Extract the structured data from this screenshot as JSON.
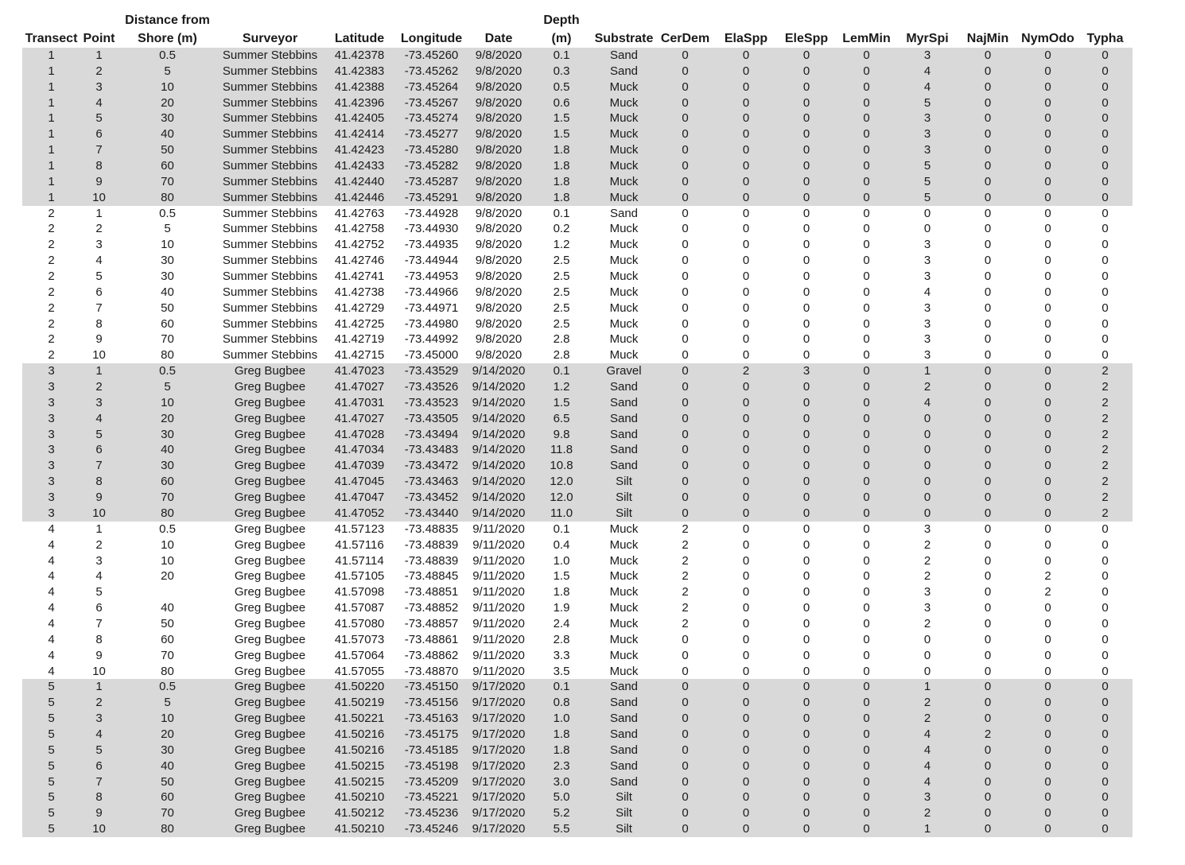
{
  "columns": [
    {
      "line1": "",
      "line2": "Transect"
    },
    {
      "line1": "",
      "line2": "Point"
    },
    {
      "line1": "Distance from",
      "line2": "Shore (m)"
    },
    {
      "line1": "",
      "line2": "Surveyor"
    },
    {
      "line1": "",
      "line2": "Latitude"
    },
    {
      "line1": "",
      "line2": "Longitude"
    },
    {
      "line1": "",
      "line2": "Date"
    },
    {
      "line1": "Depth",
      "line2": "(m)"
    },
    {
      "line1": "",
      "line2": "Substrate"
    },
    {
      "line1": "",
      "line2": "CerDem"
    },
    {
      "line1": "",
      "line2": "ElaSpp"
    },
    {
      "line1": "",
      "line2": "EleSpp"
    },
    {
      "line1": "",
      "line2": "LemMin"
    },
    {
      "line1": "",
      "line2": "MyrSpi"
    },
    {
      "line1": "",
      "line2": "NajMin"
    },
    {
      "line1": "",
      "line2": "NymOdo"
    },
    {
      "line1": "",
      "line2": "Typha"
    }
  ],
  "rows": [
    [
      "1",
      "1",
      "0.5",
      "Summer Stebbins",
      "41.42378",
      "-73.45260",
      "9/8/2020",
      "0.1",
      "Sand",
      "0",
      "0",
      "0",
      "0",
      "3",
      "0",
      "0",
      "0"
    ],
    [
      "1",
      "2",
      "5",
      "Summer Stebbins",
      "41.42383",
      "-73.45262",
      "9/8/2020",
      "0.3",
      "Sand",
      "0",
      "0",
      "0",
      "0",
      "4",
      "0",
      "0",
      "0"
    ],
    [
      "1",
      "3",
      "10",
      "Summer Stebbins",
      "41.42388",
      "-73.45264",
      "9/8/2020",
      "0.5",
      "Muck",
      "0",
      "0",
      "0",
      "0",
      "4",
      "0",
      "0",
      "0"
    ],
    [
      "1",
      "4",
      "20",
      "Summer Stebbins",
      "41.42396",
      "-73.45267",
      "9/8/2020",
      "0.6",
      "Muck",
      "0",
      "0",
      "0",
      "0",
      "5",
      "0",
      "0",
      "0"
    ],
    [
      "1",
      "5",
      "30",
      "Summer Stebbins",
      "41.42405",
      "-73.45274",
      "9/8/2020",
      "1.5",
      "Muck",
      "0",
      "0",
      "0",
      "0",
      "3",
      "0",
      "0",
      "0"
    ],
    [
      "1",
      "6",
      "40",
      "Summer Stebbins",
      "41.42414",
      "-73.45277",
      "9/8/2020",
      "1.5",
      "Muck",
      "0",
      "0",
      "0",
      "0",
      "3",
      "0",
      "0",
      "0"
    ],
    [
      "1",
      "7",
      "50",
      "Summer Stebbins",
      "41.42423",
      "-73.45280",
      "9/8/2020",
      "1.8",
      "Muck",
      "0",
      "0",
      "0",
      "0",
      "3",
      "0",
      "0",
      "0"
    ],
    [
      "1",
      "8",
      "60",
      "Summer Stebbins",
      "41.42433",
      "-73.45282",
      "9/8/2020",
      "1.8",
      "Muck",
      "0",
      "0",
      "0",
      "0",
      "5",
      "0",
      "0",
      "0"
    ],
    [
      "1",
      "9",
      "70",
      "Summer Stebbins",
      "41.42440",
      "-73.45287",
      "9/8/2020",
      "1.8",
      "Muck",
      "0",
      "0",
      "0",
      "0",
      "5",
      "0",
      "0",
      "0"
    ],
    [
      "1",
      "10",
      "80",
      "Summer Stebbins",
      "41.42446",
      "-73.45291",
      "9/8/2020",
      "1.8",
      "Muck",
      "0",
      "0",
      "0",
      "0",
      "5",
      "0",
      "0",
      "0"
    ],
    [
      "2",
      "1",
      "0.5",
      "Summer Stebbins",
      "41.42763",
      "-73.44928",
      "9/8/2020",
      "0.1",
      "Sand",
      "0",
      "0",
      "0",
      "0",
      "0",
      "0",
      "0",
      "0"
    ],
    [
      "2",
      "2",
      "5",
      "Summer Stebbins",
      "41.42758",
      "-73.44930",
      "9/8/2020",
      "0.2",
      "Muck",
      "0",
      "0",
      "0",
      "0",
      "0",
      "0",
      "0",
      "0"
    ],
    [
      "2",
      "3",
      "10",
      "Summer Stebbins",
      "41.42752",
      "-73.44935",
      "9/8/2020",
      "1.2",
      "Muck",
      "0",
      "0",
      "0",
      "0",
      "3",
      "0",
      "0",
      "0"
    ],
    [
      "2",
      "4",
      "30",
      "Summer Stebbins",
      "41.42746",
      "-73.44944",
      "9/8/2020",
      "2.5",
      "Muck",
      "0",
      "0",
      "0",
      "0",
      "3",
      "0",
      "0",
      "0"
    ],
    [
      "2",
      "5",
      "30",
      "Summer Stebbins",
      "41.42741",
      "-73.44953",
      "9/8/2020",
      "2.5",
      "Muck",
      "0",
      "0",
      "0",
      "0",
      "3",
      "0",
      "0",
      "0"
    ],
    [
      "2",
      "6",
      "40",
      "Summer Stebbins",
      "41.42738",
      "-73.44966",
      "9/8/2020",
      "2.5",
      "Muck",
      "0",
      "0",
      "0",
      "0",
      "4",
      "0",
      "0",
      "0"
    ],
    [
      "2",
      "7",
      "50",
      "Summer Stebbins",
      "41.42729",
      "-73.44971",
      "9/8/2020",
      "2.5",
      "Muck",
      "0",
      "0",
      "0",
      "0",
      "3",
      "0",
      "0",
      "0"
    ],
    [
      "2",
      "8",
      "60",
      "Summer Stebbins",
      "41.42725",
      "-73.44980",
      "9/8/2020",
      "2.5",
      "Muck",
      "0",
      "0",
      "0",
      "0",
      "3",
      "0",
      "0",
      "0"
    ],
    [
      "2",
      "9",
      "70",
      "Summer Stebbins",
      "41.42719",
      "-73.44992",
      "9/8/2020",
      "2.8",
      "Muck",
      "0",
      "0",
      "0",
      "0",
      "3",
      "0",
      "0",
      "0"
    ],
    [
      "2",
      "10",
      "80",
      "Summer Stebbins",
      "41.42715",
      "-73.45000",
      "9/8/2020",
      "2.8",
      "Muck",
      "0",
      "0",
      "0",
      "0",
      "3",
      "0",
      "0",
      "0"
    ],
    [
      "3",
      "1",
      "0.5",
      "Greg Bugbee",
      "41.47023",
      "-73.43529",
      "9/14/2020",
      "0.1",
      "Gravel",
      "0",
      "2",
      "3",
      "0",
      "1",
      "0",
      "0",
      "2"
    ],
    [
      "3",
      "2",
      "5",
      "Greg Bugbee",
      "41.47027",
      "-73.43526",
      "9/14/2020",
      "1.2",
      "Sand",
      "0",
      "0",
      "0",
      "0",
      "2",
      "0",
      "0",
      "2"
    ],
    [
      "3",
      "3",
      "10",
      "Greg Bugbee",
      "41.47031",
      "-73.43523",
      "9/14/2020",
      "1.5",
      "Sand",
      "0",
      "0",
      "0",
      "0",
      "4",
      "0",
      "0",
      "2"
    ],
    [
      "3",
      "4",
      "20",
      "Greg Bugbee",
      "41.47027",
      "-73.43505",
      "9/14/2020",
      "6.5",
      "Sand",
      "0",
      "0",
      "0",
      "0",
      "0",
      "0",
      "0",
      "2"
    ],
    [
      "3",
      "5",
      "30",
      "Greg Bugbee",
      "41.47028",
      "-73.43494",
      "9/14/2020",
      "9.8",
      "Sand",
      "0",
      "0",
      "0",
      "0",
      "0",
      "0",
      "0",
      "2"
    ],
    [
      "3",
      "6",
      "40",
      "Greg Bugbee",
      "41.47034",
      "-73.43483",
      "9/14/2020",
      "11.8",
      "Sand",
      "0",
      "0",
      "0",
      "0",
      "0",
      "0",
      "0",
      "2"
    ],
    [
      "3",
      "7",
      "30",
      "Greg Bugbee",
      "41.47039",
      "-73.43472",
      "9/14/2020",
      "10.8",
      "Sand",
      "0",
      "0",
      "0",
      "0",
      "0",
      "0",
      "0",
      "2"
    ],
    [
      "3",
      "8",
      "60",
      "Greg Bugbee",
      "41.47045",
      "-73.43463",
      "9/14/2020",
      "12.0",
      "Silt",
      "0",
      "0",
      "0",
      "0",
      "0",
      "0",
      "0",
      "2"
    ],
    [
      "3",
      "9",
      "70",
      "Greg Bugbee",
      "41.47047",
      "-73.43452",
      "9/14/2020",
      "12.0",
      "Silt",
      "0",
      "0",
      "0",
      "0",
      "0",
      "0",
      "0",
      "2"
    ],
    [
      "3",
      "10",
      "80",
      "Greg Bugbee",
      "41.47052",
      "-73.43440",
      "9/14/2020",
      "11.0",
      "Silt",
      "0",
      "0",
      "0",
      "0",
      "0",
      "0",
      "0",
      "2"
    ],
    [
      "4",
      "1",
      "0.5",
      "Greg Bugbee",
      "41.57123",
      "-73.48835",
      "9/11/2020",
      "0.1",
      "Muck",
      "2",
      "0",
      "0",
      "0",
      "3",
      "0",
      "0",
      "0"
    ],
    [
      "4",
      "2",
      "10",
      "Greg Bugbee",
      "41.57116",
      "-73.48839",
      "9/11/2020",
      "0.4",
      "Muck",
      "2",
      "0",
      "0",
      "0",
      "2",
      "0",
      "0",
      "0"
    ],
    [
      "4",
      "3",
      "10",
      "Greg Bugbee",
      "41.57114",
      "-73.48839",
      "9/11/2020",
      "1.0",
      "Muck",
      "2",
      "0",
      "0",
      "0",
      "2",
      "0",
      "0",
      "0"
    ],
    [
      "4",
      "4",
      "20",
      "Greg Bugbee",
      "41.57105",
      "-73.48845",
      "9/11/2020",
      "1.5",
      "Muck",
      "2",
      "0",
      "0",
      "0",
      "2",
      "0",
      "2",
      "0"
    ],
    [
      "4",
      "5",
      "",
      "Greg Bugbee",
      "41.57098",
      "-73.48851",
      "9/11/2020",
      "1.8",
      "Muck",
      "2",
      "0",
      "0",
      "0",
      "3",
      "0",
      "2",
      "0"
    ],
    [
      "4",
      "6",
      "40",
      "Greg Bugbee",
      "41.57087",
      "-73.48852",
      "9/11/2020",
      "1.9",
      "Muck",
      "2",
      "0",
      "0",
      "0",
      "3",
      "0",
      "0",
      "0"
    ],
    [
      "4",
      "7",
      "50",
      "Greg Bugbee",
      "41.57080",
      "-73.48857",
      "9/11/2020",
      "2.4",
      "Muck",
      "2",
      "0",
      "0",
      "0",
      "2",
      "0",
      "0",
      "0"
    ],
    [
      "4",
      "8",
      "60",
      "Greg Bugbee",
      "41.57073",
      "-73.48861",
      "9/11/2020",
      "2.8",
      "Muck",
      "0",
      "0",
      "0",
      "0",
      "0",
      "0",
      "0",
      "0"
    ],
    [
      "4",
      "9",
      "70",
      "Greg Bugbee",
      "41.57064",
      "-73.48862",
      "9/11/2020",
      "3.3",
      "Muck",
      "0",
      "0",
      "0",
      "0",
      "0",
      "0",
      "0",
      "0"
    ],
    [
      "4",
      "10",
      "80",
      "Greg Bugbee",
      "41.57055",
      "-73.48870",
      "9/11/2020",
      "3.5",
      "Muck",
      "0",
      "0",
      "0",
      "0",
      "0",
      "0",
      "0",
      "0"
    ],
    [
      "5",
      "1",
      "0.5",
      "Greg Bugbee",
      "41.50220",
      "-73.45150",
      "9/17/2020",
      "0.1",
      "Sand",
      "0",
      "0",
      "0",
      "0",
      "1",
      "0",
      "0",
      "0"
    ],
    [
      "5",
      "2",
      "5",
      "Greg Bugbee",
      "41.50219",
      "-73.45156",
      "9/17/2020",
      "0.8",
      "Sand",
      "0",
      "0",
      "0",
      "0",
      "2",
      "0",
      "0",
      "0"
    ],
    [
      "5",
      "3",
      "10",
      "Greg Bugbee",
      "41.50221",
      "-73.45163",
      "9/17/2020",
      "1.0",
      "Sand",
      "0",
      "0",
      "0",
      "0",
      "2",
      "0",
      "0",
      "0"
    ],
    [
      "5",
      "4",
      "20",
      "Greg Bugbee",
      "41.50216",
      "-73.45175",
      "9/17/2020",
      "1.8",
      "Sand",
      "0",
      "0",
      "0",
      "0",
      "4",
      "2",
      "0",
      "0"
    ],
    [
      "5",
      "5",
      "30",
      "Greg Bugbee",
      "41.50216",
      "-73.45185",
      "9/17/2020",
      "1.8",
      "Sand",
      "0",
      "0",
      "0",
      "0",
      "4",
      "0",
      "0",
      "0"
    ],
    [
      "5",
      "6",
      "40",
      "Greg Bugbee",
      "41.50215",
      "-73.45198",
      "9/17/2020",
      "2.3",
      "Sand",
      "0",
      "0",
      "0",
      "0",
      "4",
      "0",
      "0",
      "0"
    ],
    [
      "5",
      "7",
      "50",
      "Greg Bugbee",
      "41.50215",
      "-73.45209",
      "9/17/2020",
      "3.0",
      "Sand",
      "0",
      "0",
      "0",
      "0",
      "4",
      "0",
      "0",
      "0"
    ],
    [
      "5",
      "8",
      "60",
      "Greg Bugbee",
      "41.50210",
      "-73.45221",
      "9/17/2020",
      "5.0",
      "Silt",
      "0",
      "0",
      "0",
      "0",
      "3",
      "0",
      "0",
      "0"
    ],
    [
      "5",
      "9",
      "70",
      "Greg Bugbee",
      "41.50212",
      "-73.45236",
      "9/17/2020",
      "5.2",
      "Silt",
      "0",
      "0",
      "0",
      "0",
      "2",
      "0",
      "0",
      "0"
    ],
    [
      "5",
      "10",
      "80",
      "Greg Bugbee",
      "41.50210",
      "-73.45246",
      "9/17/2020",
      "5.5",
      "Silt",
      "0",
      "0",
      "0",
      "0",
      "1",
      "0",
      "0",
      "0"
    ]
  ],
  "shaded_transects": [
    "1",
    "3",
    "5"
  ],
  "colors": {
    "band_shade": "#d9d9d9",
    "text": "#1a1a1a",
    "background": "#ffffff"
  }
}
